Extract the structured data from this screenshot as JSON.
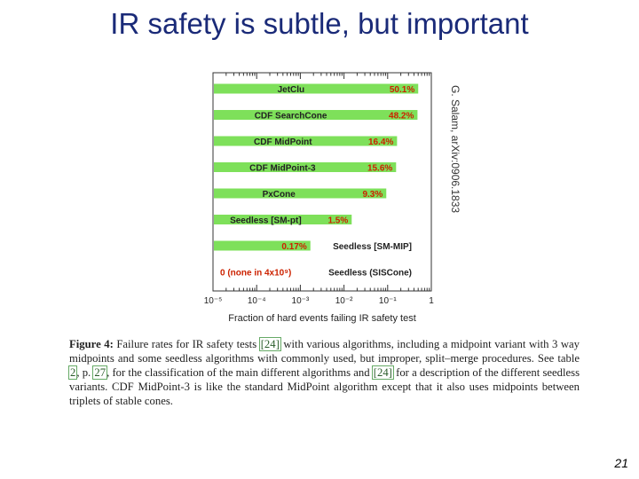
{
  "slide": {
    "title": "IR safety is subtle, but important",
    "citation": "G. Salam, arXiv:0906.1833",
    "number": "21"
  },
  "caption": {
    "figure_label": "Figure 4:",
    "part1": "Failure rates for IR safety tests",
    "ref1": "[24]",
    "part2": "with various algorithms, including a midpoint variant with 3 way midpoints and some seedless algorithms with commonly used, but improper, split–merge procedures. See table",
    "ref2": "2",
    "part3": ", p.",
    "ref3": "27",
    "part4": ", for the classification of the main different algorithms and",
    "ref4": "[24]",
    "part5": "for a description of the different seedless variants. CDF MidPoint-3 is like the standard MidPoint algorithm except that it also uses midpoints between triplets of stable cones."
  },
  "colors": {
    "title": "#1a2a78",
    "bar": "#7ee05a",
    "value_label": "#cc2200",
    "bar_label": "#222222"
  },
  "chart_data": {
    "type": "bar",
    "orientation": "horizontal",
    "x_scale": "log",
    "xlim": [
      1e-05,
      1
    ],
    "xlabel": "Fraction of hard events failing IR safety test",
    "xtick_labels": [
      "10⁻⁵",
      "10⁻⁴",
      "10⁻³",
      "10⁻²",
      "10⁻¹",
      "1"
    ],
    "categories": [
      "JetClu",
      "CDF SearchCone",
      "CDF MidPoint",
      "CDF MidPoint-3",
      "PxCone",
      "Seedless [SM-pt]",
      "Seedless [SM-MIP]",
      "Seedless (SISCone)"
    ],
    "values": [
      0.501,
      0.482,
      0.164,
      0.156,
      0.093,
      0.015,
      0.0017,
      0
    ],
    "value_labels": [
      "50.1%",
      "48.2%",
      "16.4%",
      "15.6%",
      "9.3%",
      "1.5%",
      "0.17%",
      "0 (none in 4x10⁹)"
    ]
  }
}
